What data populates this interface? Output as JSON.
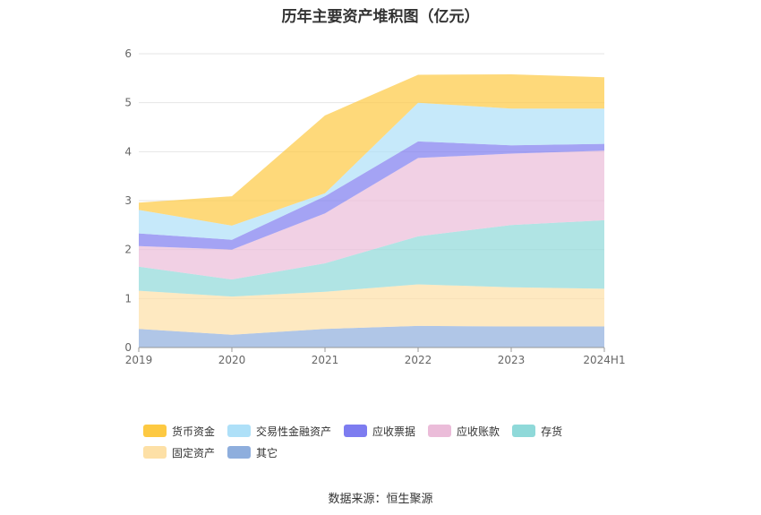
{
  "chart_data": {
    "type": "area",
    "stacked": true,
    "title": "历年主要资产堆积图（亿元）",
    "categories": [
      "2019",
      "2020",
      "2021",
      "2022",
      "2023",
      "2024H1"
    ],
    "ylim": [
      0,
      6
    ],
    "yticks": [
      "0",
      "1",
      "2",
      "3",
      "4",
      "5",
      "6"
    ],
    "grid": true,
    "legend_position": "bottom",
    "series": [
      {
        "name": "其它",
        "color": "#8eaedd",
        "values": [
          0.38,
          0.26,
          0.38,
          0.44,
          0.43,
          0.43
        ]
      },
      {
        "name": "固定资产",
        "color": "#fde0a6",
        "values": [
          0.78,
          0.78,
          0.76,
          0.85,
          0.8,
          0.77
        ]
      },
      {
        "name": "存货",
        "color": "#8fd9d9",
        "values": [
          0.49,
          0.35,
          0.58,
          0.98,
          1.27,
          1.4
        ]
      },
      {
        "name": "应收账款",
        "color": "#ebbcd9",
        "values": [
          0.42,
          0.61,
          1.02,
          1.6,
          1.46,
          1.42
        ]
      },
      {
        "name": "应收票据",
        "color": "#7d7cf0",
        "values": [
          0.26,
          0.2,
          0.35,
          0.34,
          0.17,
          0.14
        ]
      },
      {
        "name": "交易性金融资产",
        "color": "#aee0f8",
        "values": [
          0.48,
          0.29,
          0.06,
          0.79,
          0.75,
          0.72
        ]
      },
      {
        "name": "货币资金",
        "color": "#fdc942",
        "values": [
          0.15,
          0.6,
          1.59,
          0.57,
          0.7,
          0.64
        ]
      }
    ]
  },
  "legend_order": [
    "货币资金",
    "交易性金融资产",
    "应收票据",
    "应收账款",
    "存货",
    "固定资产",
    "其它"
  ],
  "source": "数据来源：恒生聚源"
}
